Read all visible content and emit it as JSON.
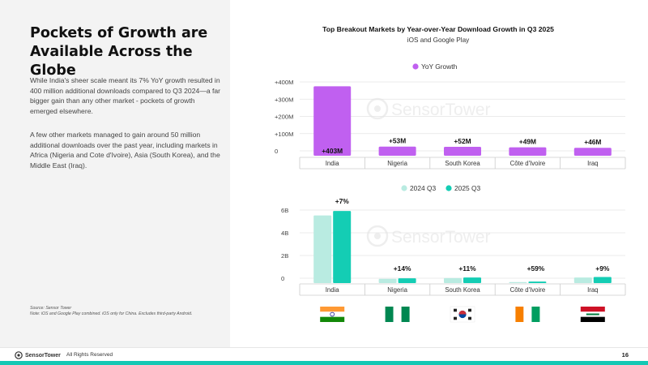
{
  "slide": {
    "headline": "Pockets of Growth are Available Across the Globe",
    "paragraph1": "While India's sheer scale meant its 7% YoY growth resulted in 400 million additional downloads compared to Q3 2024—a far bigger gain than any other market - pockets of growth emerged elsewhere.",
    "paragraph2": "A few other markets managed to gain around 50 million additional downloads over the past year, including markets in Africa (Nigeria and Cote d'Ivoire), Asia (South Korea), and the Middle East (Iraq).",
    "source_line1": "Source: Sensor Tower",
    "source_line2": "Note: iOS and Google Play combined. iOS only for China. Excludes third-party Android.",
    "footer_brand": "SensorTower",
    "footer_rights": "All Rights Reserved",
    "page_number": "16",
    "watermark": "SensorTower"
  },
  "colors": {
    "yoy": "#c060f0",
    "q3_2024": "#b9ebe1",
    "q3_2025": "#14cdb4",
    "accent_bar": "#14c8b4"
  },
  "chart_data": [
    {
      "type": "bar",
      "title": "Top Breakout Markets by Year-over-Year Download Growth in Q3 2025",
      "subtitle": "iOS and Google Play",
      "categories": [
        "India",
        "Nigeria",
        "South Korea",
        "Côte d'Ivoire",
        "Iraq"
      ],
      "series": [
        {
          "name": "YoY Growth",
          "values": [
            403,
            53,
            52,
            49,
            46
          ]
        }
      ],
      "units": "M",
      "data_labels": [
        "+403M",
        "+53M",
        "+52M",
        "+49M",
        "+46M"
      ],
      "yticks": [
        "0",
        "+100M",
        "+200M",
        "+300M",
        "+400M"
      ],
      "ylim": [
        0,
        400
      ],
      "legend": "top-center",
      "grid": true
    },
    {
      "type": "bar",
      "categories": [
        "India",
        "Nigeria",
        "South Korea",
        "Côte d'Ivoire",
        "Iraq"
      ],
      "series": [
        {
          "name": "2024 Q3",
          "values": [
            6.1,
            0.38,
            0.45,
            0.085,
            0.5
          ]
        },
        {
          "name": "2025 Q3",
          "values": [
            6.5,
            0.43,
            0.5,
            0.135,
            0.55
          ]
        }
      ],
      "units": "B",
      "data_labels": [
        "+7%",
        "+14%",
        "+11%",
        "+59%",
        "+9%"
      ],
      "yticks": [
        "0",
        "2B",
        "4B",
        "6B"
      ],
      "ylim": [
        0,
        6.8
      ],
      "legend": "top-center",
      "grid": true
    }
  ],
  "flags": [
    {
      "country": "India",
      "icon": "india-flag-icon"
    },
    {
      "country": "Nigeria",
      "icon": "nigeria-flag-icon"
    },
    {
      "country": "South Korea",
      "icon": "south-korea-flag-icon"
    },
    {
      "country": "Côte d'Ivoire",
      "icon": "cote-divoire-flag-icon"
    },
    {
      "country": "Iraq",
      "icon": "iraq-flag-icon"
    }
  ]
}
